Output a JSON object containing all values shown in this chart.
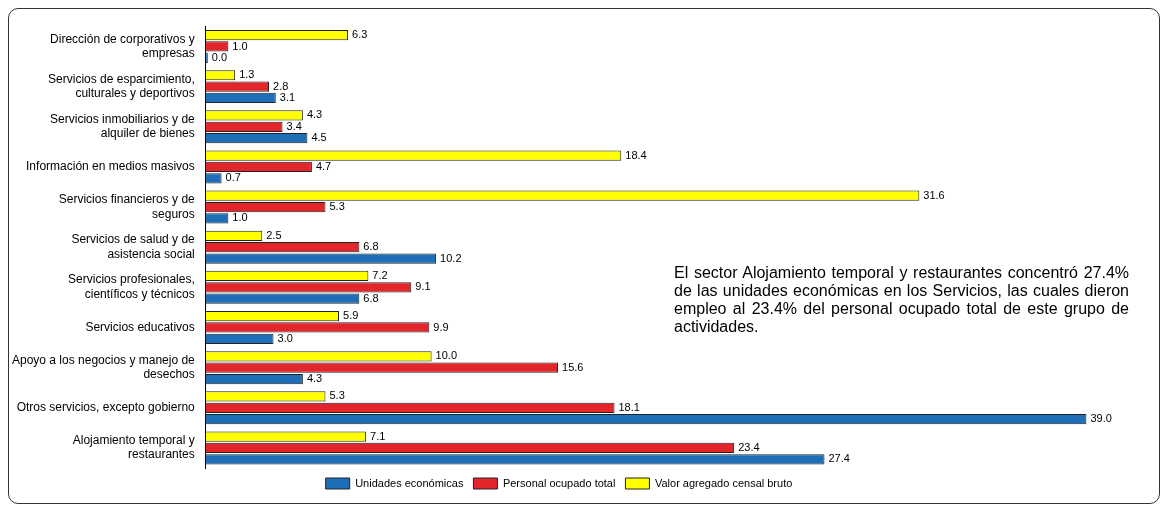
{
  "chart_data": {
    "type": "bar",
    "orientation": "horizontal",
    "categories": [
      "Dirección de corporativos y empresas",
      "Servicios de esparcimiento, culturales y deportivos",
      "Servicios inmobiliarios y de alquiler de bienes",
      "Información en medios masivos",
      "Servicios financieros y de seguros",
      "Servicios de salud y de asistencia social",
      "Servicios profesionales, científicos y técnicos",
      "Servicios educativos",
      "Apoyo a los negocios y manejo de desechos",
      "Otros servicios, excepto gobierno",
      "Alojamiento temporal y restaurantes"
    ],
    "series": [
      {
        "name": "Valor agregado censal bruto",
        "color": "#ffff00",
        "values": [
          6.3,
          1.3,
          4.3,
          18.4,
          31.6,
          2.5,
          7.2,
          5.9,
          10.0,
          5.3,
          7.1
        ],
        "value_labels": [
          "6.3",
          "1.3",
          "4.3",
          "18.4",
          "31.6",
          "2.5",
          "7.2",
          "5.9",
          "10.0",
          "5.3",
          "7.1"
        ]
      },
      {
        "name": "Personal ocupado total",
        "color": "#e3262b",
        "values": [
          1.0,
          2.8,
          3.4,
          4.7,
          5.3,
          6.8,
          9.1,
          9.9,
          15.6,
          18.1,
          23.4
        ],
        "value_labels": [
          "1.0",
          "2.8",
          "3.4",
          "4.7",
          "5.3",
          "6.8",
          "9.1",
          "9.9",
          "15.6",
          "18.1",
          "23.4"
        ]
      },
      {
        "name": "Unidades económicas",
        "color": "#1f6fb8",
        "values": [
          0.0,
          3.1,
          4.5,
          0.7,
          1.0,
          10.2,
          6.8,
          3.0,
          4.3,
          39.0,
          27.4
        ],
        "value_labels": [
          "0.0",
          "3.1",
          "4.5",
          "0.7",
          "1.0",
          "10.2",
          "6.8",
          "3.0",
          "4.3",
          "39.0",
          "27.4"
        ]
      }
    ],
    "legend": "bottom",
    "annotations": [
      "El sector Alojamiento temporal y restaurantes concentró 27.4% de las unidades económicas en los Servicios, las cuales dieron empleo al 23.4% del personal ocupado total de este grupo de actividades."
    ]
  }
}
